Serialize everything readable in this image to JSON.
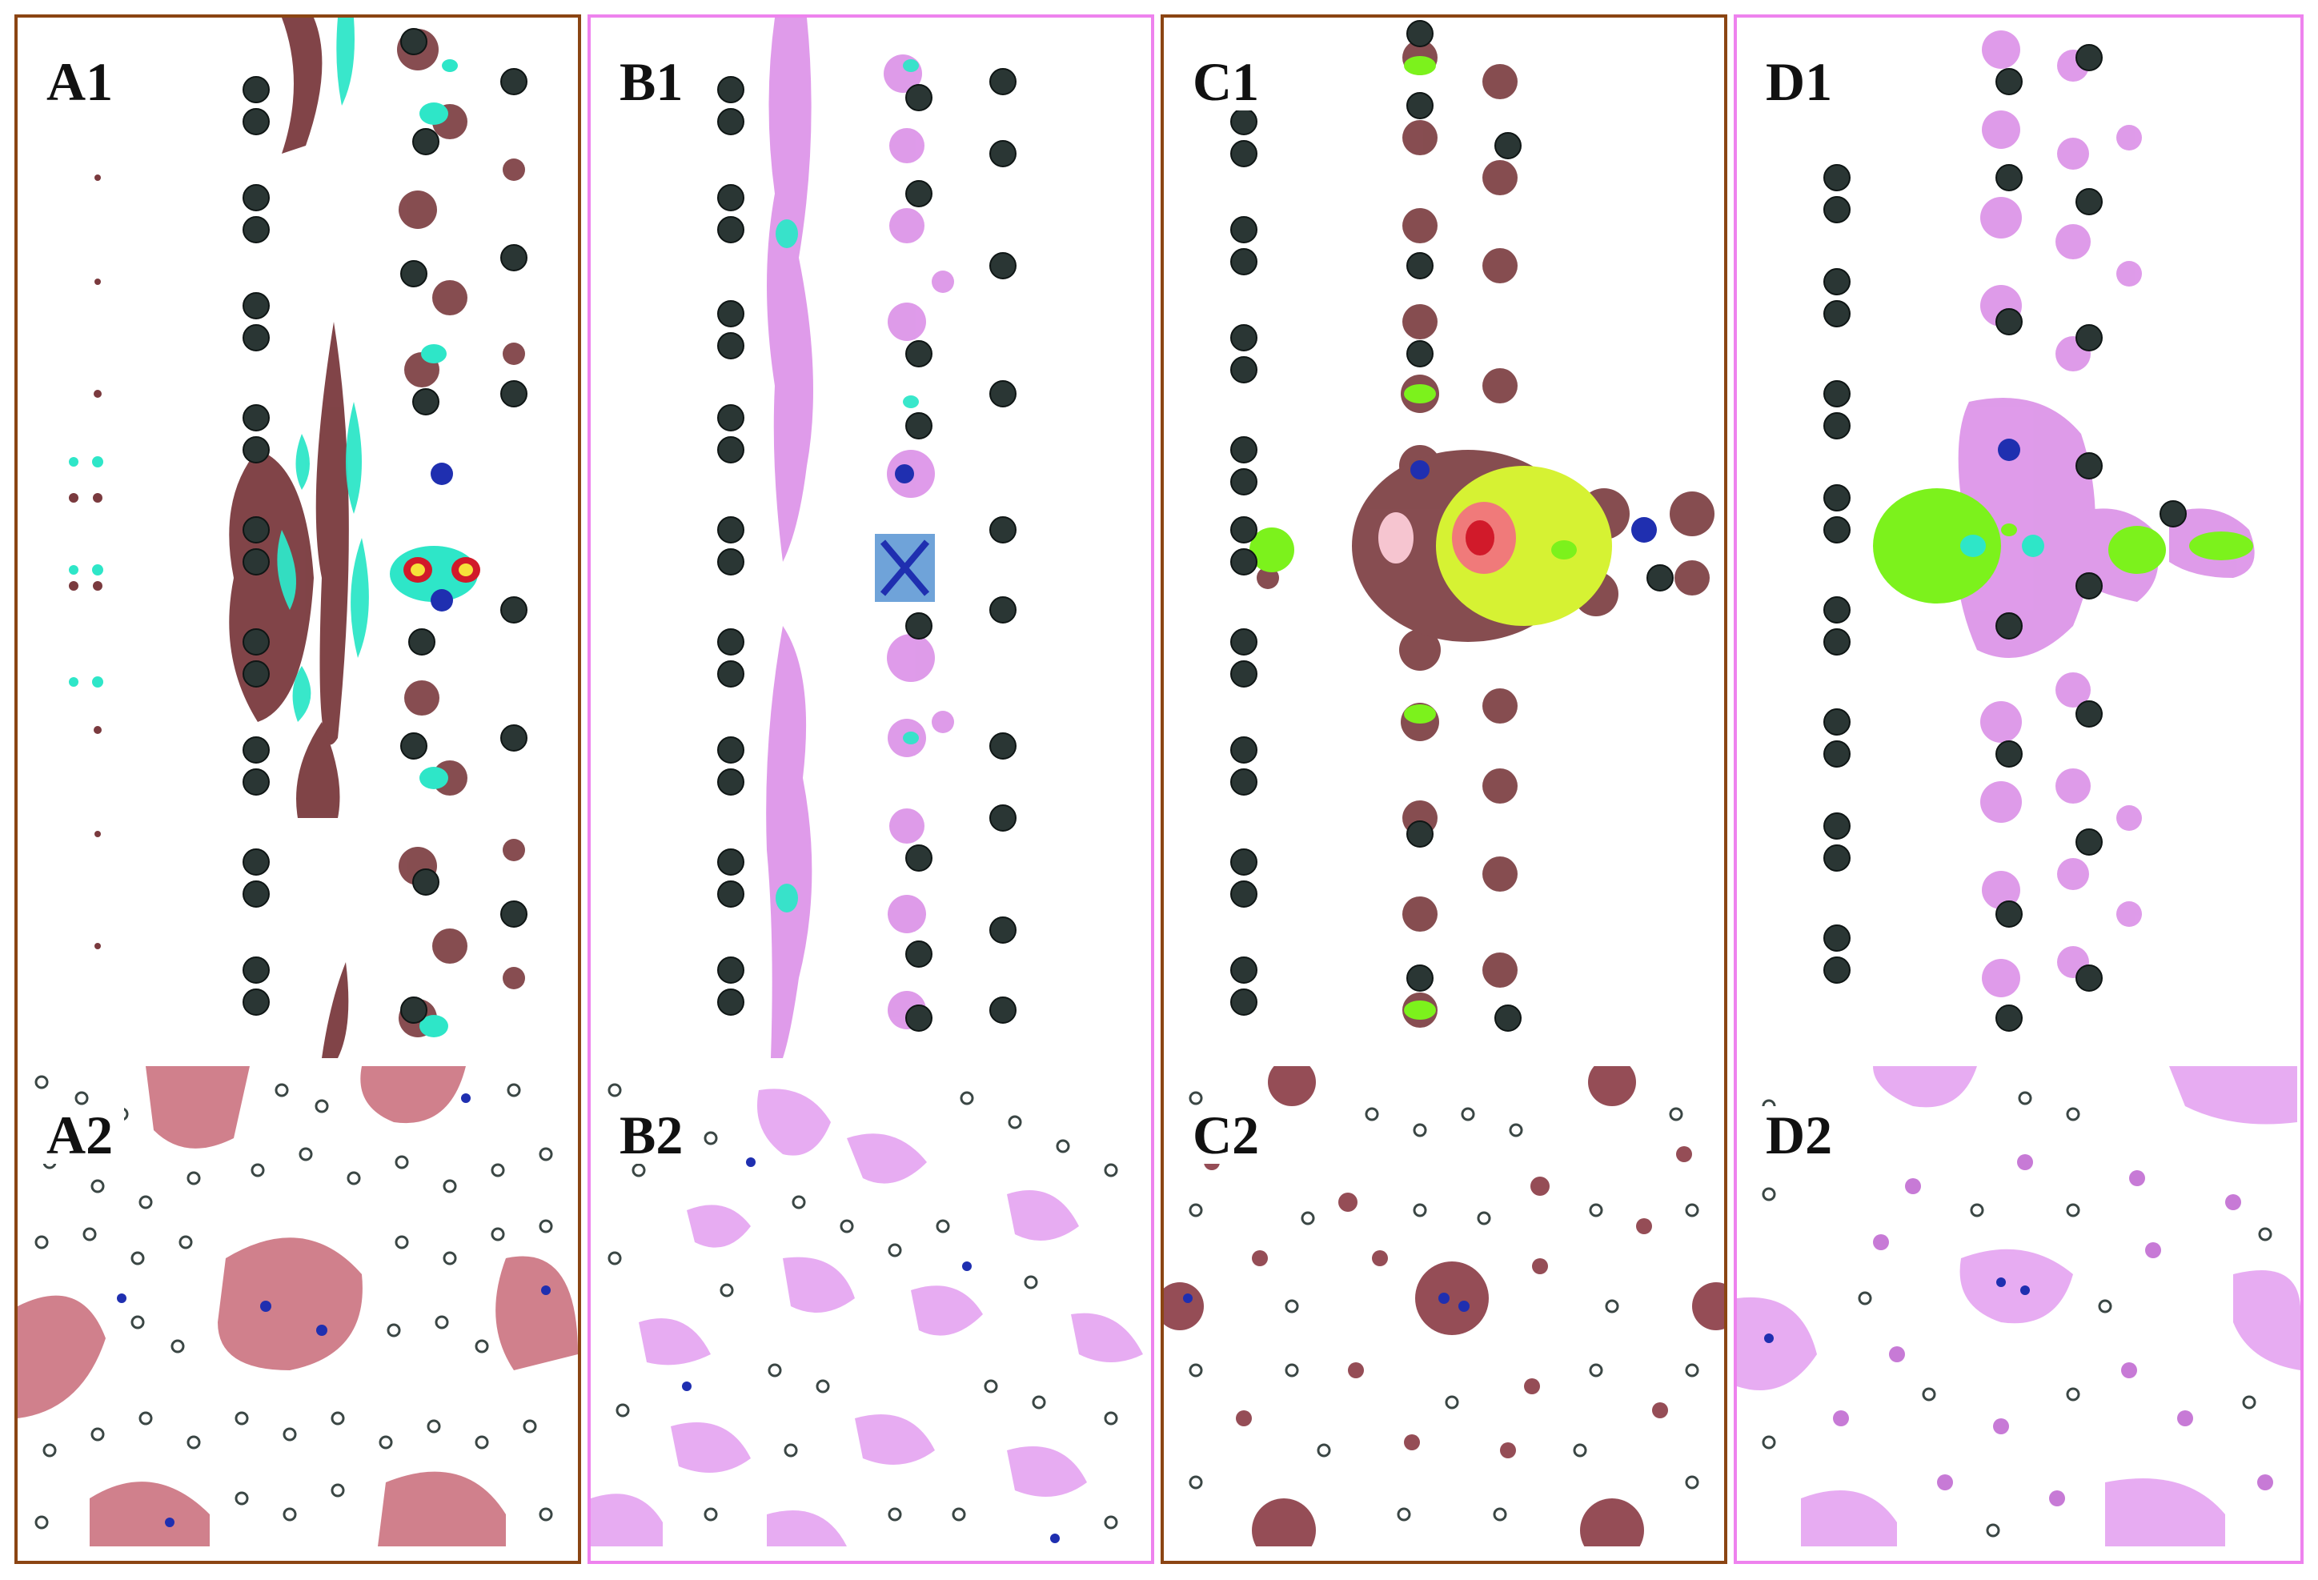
{
  "figure": {
    "colors": {
      "frame_brown": "#8B4513",
      "frame_pink": "#EE82EE",
      "atom_dark": "#2a3634",
      "dopant_blue": "#1f2fb0",
      "iso_maroon": "#7a3a3e",
      "iso_cyan": "#2ee6c8",
      "iso_pink": "#d98ae6",
      "iso_lime": "#7cf21c",
      "surface_rose": "#c86a78"
    },
    "panels": [
      {
        "id": "A",
        "side_label": "A1",
        "top_label": "A2",
        "frame": "brown",
        "iso": "maroon-cyan"
      },
      {
        "id": "B",
        "side_label": "B1",
        "top_label": "B2",
        "frame": "pink",
        "iso": "pink-cyan"
      },
      {
        "id": "C",
        "side_label": "C1",
        "top_label": "C2",
        "frame": "brown",
        "iso": "maroon-lime"
      },
      {
        "id": "D",
        "side_label": "D1",
        "top_label": "D2",
        "frame": "pink",
        "iso": "pink-lime"
      }
    ]
  }
}
